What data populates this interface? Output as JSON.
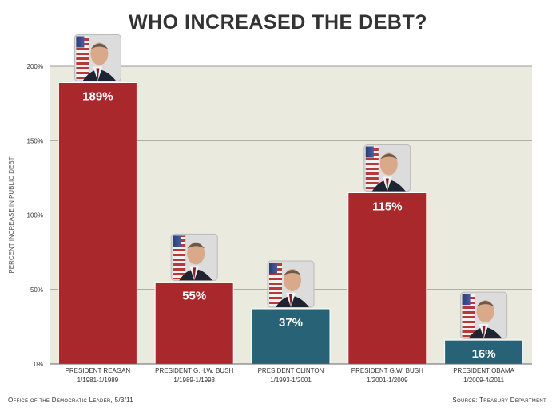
{
  "title": "WHO INCREASED THE DEBT?",
  "footer": {
    "left": "Office of the Democratic Leader, 5/3/11",
    "right": "Source: Treasury Department"
  },
  "colors": {
    "republican_bar": "#a8282b",
    "democrat_bar": "#286276",
    "plot_bg": "#ebeadf",
    "grid": "#999999"
  },
  "chart_data": {
    "type": "bar",
    "title": "WHO INCREASED THE DEBT?",
    "ylabel": "PERCENT INCREASE IN PUBLIC DEBT",
    "xlabel": "",
    "ylim": [
      0,
      200
    ],
    "yticks": [
      "0%",
      "50%",
      "100%",
      "150%",
      "200%"
    ],
    "ytick_values": [
      0,
      50,
      100,
      150,
      200
    ],
    "grid": true,
    "categories": [
      [
        "PRESIDENT REAGAN",
        "1/1981-1/1989"
      ],
      [
        "PRESIDENT G.H.W. BUSH",
        "1/1989-1/1993"
      ],
      [
        "PRESIDENT CLINTON",
        "1/1993-1/2001"
      ],
      [
        "PRESIDENT G.W. BUSH",
        "1/2001-1/2009"
      ],
      [
        "PRESIDENT OBAMA",
        "1/2009-4/2011"
      ]
    ],
    "values": [
      189,
      55,
      37,
      115,
      16
    ],
    "data_labels": [
      "189%",
      "55%",
      "37%",
      "115%",
      "16%"
    ],
    "bar_party": [
      "republican",
      "republican",
      "democrat",
      "republican",
      "democrat"
    ],
    "photo_icons": [
      "portrait-reagan-icon",
      "portrait-ghw-bush-icon",
      "portrait-clinton-icon",
      "portrait-gw-bush-icon",
      "portrait-obama-icon"
    ]
  }
}
